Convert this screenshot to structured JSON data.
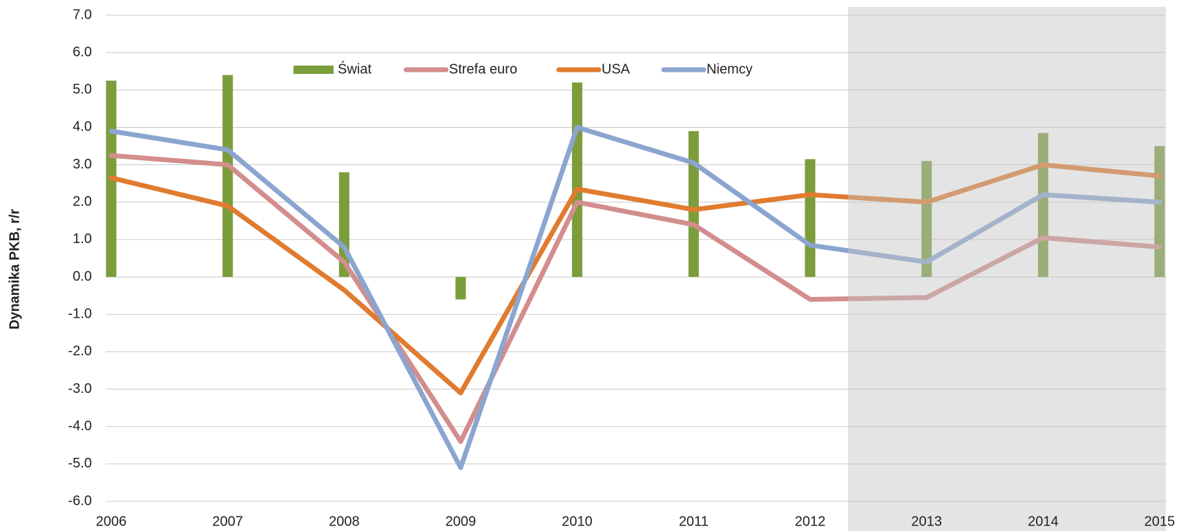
{
  "chart_data": {
    "type": "line",
    "y_label": "Dynamika PKB, r/r",
    "categories": [
      "2006",
      "2007",
      "2008",
      "2009",
      "2010",
      "2011",
      "2012",
      "2013",
      "2014",
      "2015"
    ],
    "series": [
      {
        "name": "Świat",
        "kind": "bar",
        "color": "#7b9d3c",
        "values": [
          5.25,
          5.4,
          2.8,
          -0.6,
          5.2,
          3.9,
          3.15,
          3.1,
          3.85,
          3.5
        ]
      },
      {
        "name": "Strefa euro",
        "kind": "line",
        "color": "#d38d8d",
        "values": [
          3.25,
          3.0,
          0.4,
          -4.4,
          2.0,
          1.4,
          -0.6,
          -0.55,
          1.05,
          0.8
        ]
      },
      {
        "name": "USA",
        "kind": "line",
        "color": "#e07b2f",
        "values": [
          2.65,
          1.9,
          -0.35,
          -3.1,
          2.35,
          1.8,
          2.2,
          2.0,
          3.0,
          2.7
        ]
      },
      {
        "name": "Niemcy",
        "kind": "line",
        "color": "#8ba5d0",
        "values": [
          3.9,
          3.4,
          0.8,
          -5.1,
          4.0,
          3.05,
          0.85,
          0.4,
          2.2,
          2.0
        ]
      }
    ],
    "ylim": [
      -6,
      7
    ],
    "yticks": [
      {
        "value": -6,
        "label": "-6.0"
      },
      {
        "value": -5,
        "label": "-5.0"
      },
      {
        "value": -4,
        "label": "-4.0"
      },
      {
        "value": -3,
        "label": "-3.0"
      },
      {
        "value": -2,
        "label": "-2.0"
      },
      {
        "value": -1,
        "label": "-1.0"
      },
      {
        "value": 0,
        "label": "0.0"
      },
      {
        "value": 1,
        "label": "1.0"
      },
      {
        "value": 2,
        "label": "2.0"
      },
      {
        "value": 3,
        "label": "3.0"
      },
      {
        "value": 4,
        "label": "4.0"
      },
      {
        "value": 5,
        "label": "5.0"
      },
      {
        "value": 6,
        "label": "6.0"
      },
      {
        "value": 7,
        "label": "7.0"
      }
    ],
    "grid": true,
    "legend": "top"
  }
}
